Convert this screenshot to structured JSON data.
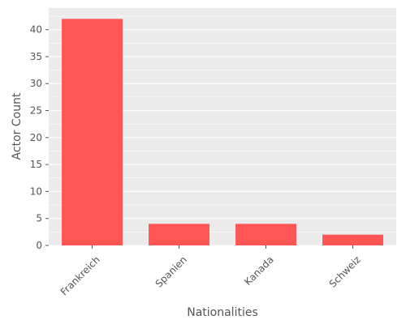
{
  "chart_data": {
    "type": "bar",
    "title": "",
    "xlabel": "Nationalities",
    "ylabel": "Actor Count",
    "categories": [
      "Frankreich",
      "Spanien",
      "Kanada",
      "Schweiz"
    ],
    "values": [
      42,
      4,
      4,
      2
    ],
    "ylim": [
      0,
      44
    ],
    "yticks": [
      0,
      5,
      10,
      15,
      20,
      25,
      30,
      35,
      40
    ],
    "grid": true,
    "legend": "none",
    "colors": {
      "bar": "#FF5555",
      "panel_background": "#EBEBEB",
      "gridline": "#FFFFFF",
      "text": "#555555"
    }
  }
}
